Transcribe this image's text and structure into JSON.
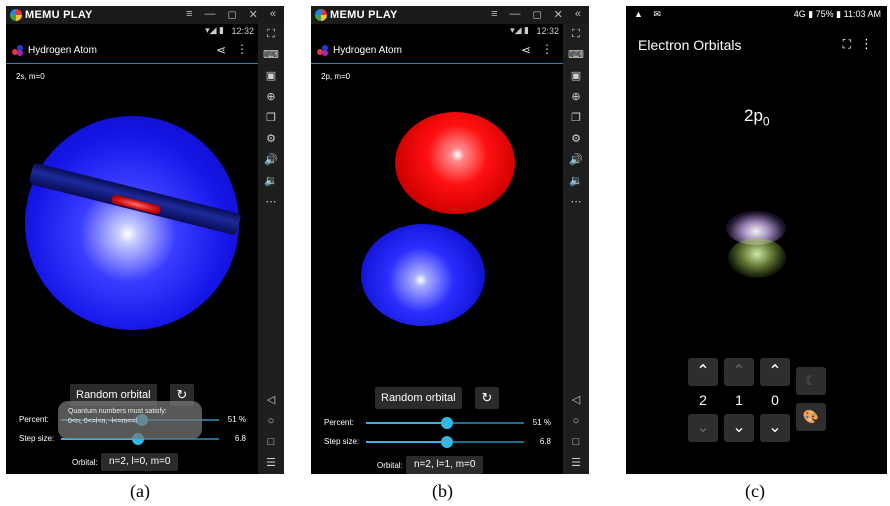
{
  "emulator": {
    "brand": "MEMU PLAY",
    "window_controls": [
      "≡",
      "—",
      "◻",
      "✕",
      "«"
    ]
  },
  "status_bar": {
    "time": "12:32",
    "signals": "▾◢ ▮"
  },
  "panel_a": {
    "app_title": "Hydrogen Atom",
    "quantum_label": "2s, m=0",
    "random_button": "Random orbital",
    "percent_label": "Percent:",
    "percent_value": "51 %",
    "percent_fraction": 0.51,
    "step_label": "Step size:",
    "step_value": "6.8",
    "step_fraction": 0.49,
    "orbital_label": "Orbital:",
    "orbital_value": "n=2, l=0, m=0",
    "toast_line1": "Quantum numbers must satisfy:",
    "toast_line2": "0<n, 0<=l<n, -l<=m<=l",
    "caption": "(a)"
  },
  "panel_b": {
    "app_title": "Hydrogen Atom",
    "quantum_label": "2p, m=0",
    "random_button": "Random orbital",
    "percent_label": "Percent:",
    "percent_value": "51 %",
    "percent_fraction": 0.51,
    "step_label": "Step size:",
    "step_value": "6.8",
    "step_fraction": 0.51,
    "orbital_label": "Orbital:",
    "orbital_value": "n=2, l=1, m=0",
    "caption": "(b)"
  },
  "panel_c": {
    "status_left": "▲ ✉",
    "status_right": "4G ▮ 75% ▮ 11:03 AM",
    "title": "Electron Orbitals",
    "orbital_main": "2p",
    "orbital_sub": "0",
    "n": "2",
    "l": "1",
    "m": "0",
    "caption": "(c)"
  }
}
